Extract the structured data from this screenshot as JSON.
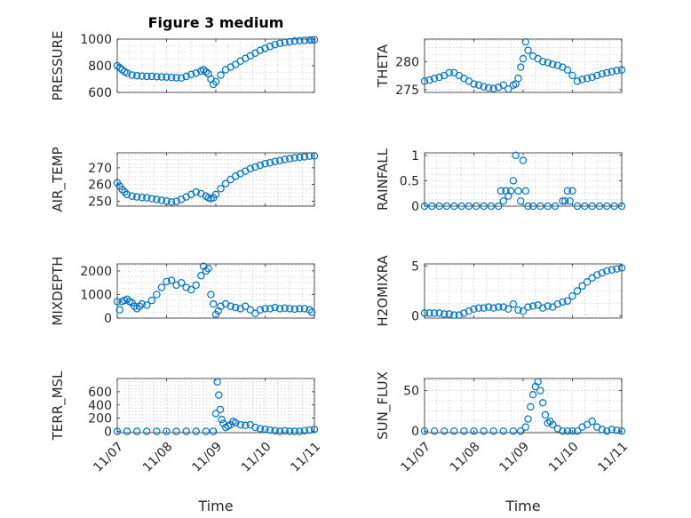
{
  "figure_title": "Figure 3 medium",
  "colors": {
    "marker": "#0072bd",
    "axes": "#262626",
    "grid": "#bdbdbd"
  },
  "chart_data": [
    {
      "type": "scatter",
      "name": "pressure",
      "title": "Figure 3 medium",
      "ylabel": "PRESSURE",
      "xlabel": "",
      "xlim": [
        0,
        4
      ],
      "ylim": [
        600,
        1000
      ],
      "yticks": [
        600,
        800,
        1000
      ],
      "ytick_labels": [
        "600",
        "800",
        "1000"
      ],
      "xticks": [
        0,
        1,
        2,
        3,
        4
      ],
      "xtick_labels": [],
      "grid": true,
      "x": [
        0,
        0.05,
        0.1,
        0.15,
        0.2,
        0.3,
        0.4,
        0.5,
        0.6,
        0.7,
        0.8,
        0.9,
        1.0,
        1.1,
        1.2,
        1.3,
        1.4,
        1.5,
        1.6,
        1.7,
        1.75,
        1.8,
        1.85,
        1.9,
        1.95,
        2.0,
        2.1,
        2.2,
        2.3,
        2.4,
        2.5,
        2.6,
        2.7,
        2.8,
        2.9,
        3.0,
        3.1,
        3.2,
        3.3,
        3.4,
        3.5,
        3.6,
        3.7,
        3.8,
        3.9,
        3.95,
        4.0
      ],
      "y": [
        800,
        785,
        770,
        755,
        745,
        730,
        725,
        722,
        720,
        720,
        718,
        716,
        715,
        712,
        710,
        708,
        720,
        735,
        745,
        760,
        770,
        755,
        740,
        700,
        660,
        680,
        730,
        770,
        790,
        810,
        835,
        855,
        875,
        895,
        915,
        930,
        945,
        958,
        968,
        975,
        980,
        985,
        988,
        990,
        992,
        993,
        995
      ]
    },
    {
      "type": "scatter",
      "name": "theta",
      "title": "",
      "ylabel": "THETA",
      "xlabel": "",
      "xlim": [
        0,
        4
      ],
      "ylim": [
        274.5,
        284
      ],
      "yticks": [
        275,
        280
      ],
      "ytick_labels": [
        "275",
        "280"
      ],
      "xticks": [
        0,
        1,
        2,
        3,
        4
      ],
      "xtick_labels": [],
      "grid": true,
      "x": [
        0,
        0.1,
        0.2,
        0.3,
        0.4,
        0.5,
        0.6,
        0.7,
        0.8,
        0.9,
        1.0,
        1.1,
        1.2,
        1.3,
        1.4,
        1.5,
        1.6,
        1.7,
        1.8,
        1.85,
        1.9,
        1.95,
        2.0,
        2.05,
        2.1,
        2.2,
        2.3,
        2.4,
        2.5,
        2.6,
        2.7,
        2.8,
        2.9,
        3.0,
        3.1,
        3.2,
        3.3,
        3.4,
        3.5,
        3.6,
        3.7,
        3.8,
        3.9,
        4.0
      ],
      "y": [
        276.5,
        276.7,
        277,
        277.2,
        277.5,
        278,
        278,
        277.5,
        277,
        276.5,
        276,
        275.8,
        275.5,
        275.3,
        275.2,
        275.4,
        275.8,
        275.1,
        275.8,
        276,
        277,
        279,
        280.5,
        283.5,
        282,
        281,
        280.5,
        280,
        279.8,
        279.5,
        279.3,
        279,
        278.5,
        277.5,
        276.5,
        276.8,
        277,
        277.2,
        277.5,
        277.8,
        278,
        278.2,
        278.4,
        278.5
      ]
    },
    {
      "type": "scatter",
      "name": "air_temp",
      "title": "",
      "ylabel": "AIR_TEMP",
      "xlabel": "",
      "xlim": [
        0,
        4
      ],
      "ylim": [
        247,
        279
      ],
      "yticks": [
        250,
        260,
        270
      ],
      "ytick_labels": [
        "250",
        "260",
        "270"
      ],
      "xticks": [
        0,
        1,
        2,
        3,
        4
      ],
      "xtick_labels": [],
      "grid": true,
      "x": [
        0,
        0.05,
        0.1,
        0.15,
        0.2,
        0.3,
        0.4,
        0.5,
        0.6,
        0.7,
        0.8,
        0.9,
        1.0,
        1.1,
        1.2,
        1.3,
        1.4,
        1.5,
        1.6,
        1.7,
        1.8,
        1.85,
        1.9,
        1.95,
        2.0,
        2.1,
        2.2,
        2.3,
        2.4,
        2.5,
        2.6,
        2.7,
        2.8,
        2.9,
        3.0,
        3.1,
        3.2,
        3.3,
        3.4,
        3.5,
        3.6,
        3.7,
        3.8,
        3.9,
        4.0
      ],
      "y": [
        261,
        259,
        257,
        255.5,
        254,
        253,
        252.5,
        252.2,
        252,
        251.5,
        251,
        250.5,
        250,
        249.5,
        249.8,
        251,
        252.5,
        254,
        255.5,
        254.5,
        253,
        252,
        251.5,
        252,
        254,
        257.5,
        260.5,
        263,
        265,
        266.5,
        268,
        269.5,
        270.5,
        271.5,
        272.5,
        273,
        273.8,
        274.3,
        275,
        275.5,
        276,
        276.3,
        276.6,
        277,
        277.2
      ]
    },
    {
      "type": "scatter",
      "name": "rainfall",
      "title": "",
      "ylabel": "RAINFALL",
      "xlabel": "",
      "xlim": [
        0,
        4
      ],
      "ylim": [
        0,
        1.05
      ],
      "yticks": [
        0,
        0.5,
        1
      ],
      "ytick_labels": [
        "0",
        "0.5",
        "1"
      ],
      "xticks": [
        0,
        1,
        2,
        3,
        4
      ],
      "xtick_labels": [],
      "grid": true,
      "x": [
        0,
        0.15,
        0.3,
        0.45,
        0.6,
        0.75,
        0.9,
        1.05,
        1.2,
        1.35,
        1.5,
        1.55,
        1.6,
        1.65,
        1.7,
        1.75,
        1.8,
        1.85,
        1.9,
        1.95,
        2.0,
        2.05,
        2.1,
        2.2,
        2.35,
        2.5,
        2.65,
        2.8,
        2.85,
        2.9,
        2.95,
        3.0,
        3.1,
        3.25,
        3.4,
        3.55,
        3.7,
        3.85,
        4.0
      ],
      "y": [
        0,
        0,
        0,
        0,
        0,
        0,
        0,
        0,
        0,
        0,
        0,
        0.3,
        0.1,
        0.3,
        0.2,
        0.3,
        0.5,
        1,
        0.3,
        0.1,
        0.9,
        0.3,
        0,
        0,
        0,
        0,
        0,
        0.1,
        0.1,
        0.3,
        0.1,
        0.3,
        0,
        0,
        0,
        0,
        0,
        0,
        0
      ]
    },
    {
      "type": "scatter",
      "name": "mixdepth",
      "title": "",
      "ylabel": "MIXDEPTH",
      "xlabel": "",
      "xlim": [
        0,
        4
      ],
      "ylim": [
        0,
        2300
      ],
      "yticks": [
        0,
        1000,
        2000
      ],
      "ytick_labels": [
        "0",
        "1000",
        "2000"
      ],
      "xticks": [
        0,
        1,
        2,
        3,
        4
      ],
      "xtick_labels": [],
      "grid": true,
      "x": [
        0,
        0.05,
        0.1,
        0.15,
        0.2,
        0.25,
        0.3,
        0.35,
        0.4,
        0.45,
        0.5,
        0.6,
        0.7,
        0.8,
        0.9,
        1.0,
        1.1,
        1.2,
        1.3,
        1.4,
        1.5,
        1.6,
        1.7,
        1.75,
        1.8,
        1.85,
        1.9,
        1.95,
        2.0,
        2.05,
        2.1,
        2.2,
        2.3,
        2.4,
        2.5,
        2.6,
        2.7,
        2.8,
        2.9,
        3.0,
        3.1,
        3.2,
        3.3,
        3.4,
        3.5,
        3.6,
        3.7,
        3.8,
        3.9,
        3.95
      ],
      "y": [
        700,
        350,
        700,
        750,
        800,
        700,
        650,
        500,
        400,
        500,
        600,
        550,
        750,
        1000,
        1300,
        1550,
        1600,
        1400,
        1500,
        1300,
        1200,
        1400,
        1800,
        2200,
        2000,
        2100,
        1000,
        600,
        150,
        300,
        500,
        600,
        500,
        450,
        400,
        500,
        350,
        200,
        350,
        400,
        400,
        450,
        400,
        420,
        400,
        380,
        400,
        400,
        350,
        250
      ]
    },
    {
      "type": "scatter",
      "name": "h2omixra",
      "title": "",
      "ylabel": "H2OMIXRA",
      "xlabel": "",
      "xlim": [
        0,
        4
      ],
      "ylim": [
        -0.2,
        5.2
      ],
      "yticks": [
        0,
        5
      ],
      "ytick_labels": [
        "0",
        "5"
      ],
      "xticks": [
        0,
        1,
        2,
        3,
        4
      ],
      "xtick_labels": [],
      "grid": true,
      "x": [
        0,
        0.1,
        0.2,
        0.3,
        0.4,
        0.5,
        0.6,
        0.7,
        0.8,
        0.9,
        1.0,
        1.1,
        1.2,
        1.3,
        1.4,
        1.5,
        1.6,
        1.7,
        1.8,
        1.9,
        2.0,
        2.1,
        2.2,
        2.3,
        2.4,
        2.5,
        2.6,
        2.7,
        2.8,
        2.9,
        3.0,
        3.1,
        3.2,
        3.3,
        3.4,
        3.5,
        3.6,
        3.7,
        3.8,
        3.9,
        4.0
      ],
      "y": [
        0.3,
        0.3,
        0.3,
        0.3,
        0.2,
        0.2,
        0.1,
        0.1,
        0.3,
        0.5,
        0.7,
        0.8,
        0.8,
        0.9,
        0.8,
        0.9,
        0.9,
        0.7,
        1.2,
        0.6,
        0.5,
        0.9,
        1.0,
        1.1,
        0.8,
        1.0,
        0.9,
        1.2,
        1.4,
        1.5,
        2.0,
        2.5,
        3.0,
        3.4,
        3.8,
        4.1,
        4.3,
        4.5,
        4.6,
        4.7,
        4.8
      ]
    },
    {
      "type": "scatter",
      "name": "terr_msl",
      "title": "",
      "ylabel": "TERR_MSL",
      "xlabel": "Time",
      "xlim": [
        0,
        4
      ],
      "ylim": [
        -20,
        800
      ],
      "yticks": [
        0,
        200,
        400,
        600
      ],
      "ytick_labels": [
        "0",
        "200",
        "400",
        "600"
      ],
      "xticks": [
        0,
        1,
        2,
        3,
        4
      ],
      "xtick_labels": [
        "11/07",
        "11/08",
        "11/09",
        "11/10",
        "11/11"
      ],
      "grid": true,
      "x": [
        0,
        0.2,
        0.4,
        0.6,
        0.8,
        1.0,
        1.2,
        1.4,
        1.6,
        1.8,
        1.95,
        2.0,
        2.03,
        2.06,
        2.09,
        2.12,
        2.15,
        2.2,
        2.25,
        2.3,
        2.35,
        2.4,
        2.5,
        2.6,
        2.7,
        2.8,
        2.9,
        3.0,
        3.1,
        3.2,
        3.3,
        3.4,
        3.5,
        3.6,
        3.7,
        3.8,
        3.9,
        4.0
      ],
      "y": [
        0,
        0,
        0,
        0,
        0,
        0,
        0,
        0,
        0,
        0,
        0,
        270,
        750,
        550,
        330,
        180,
        120,
        60,
        80,
        100,
        150,
        130,
        100,
        90,
        100,
        60,
        40,
        30,
        20,
        10,
        0,
        10,
        0,
        0,
        0,
        10,
        20,
        30
      ]
    },
    {
      "type": "scatter",
      "name": "sun_flux",
      "title": "",
      "ylabel": "SUN_FLUX",
      "xlabel": "Time",
      "xlim": [
        0,
        4
      ],
      "ylim": [
        -2,
        65
      ],
      "yticks": [
        0,
        50
      ],
      "ytick_labels": [
        "0",
        "50"
      ],
      "xticks": [
        0,
        1,
        2,
        3,
        4
      ],
      "xtick_labels": [
        "11/07",
        "11/08",
        "11/09",
        "11/10",
        "11/11"
      ],
      "grid": true,
      "x": [
        0,
        0.2,
        0.4,
        0.6,
        0.8,
        1.0,
        1.2,
        1.4,
        1.6,
        1.8,
        1.95,
        2.05,
        2.1,
        2.15,
        2.2,
        2.25,
        2.3,
        2.35,
        2.4,
        2.45,
        2.5,
        2.55,
        2.6,
        2.7,
        2.8,
        2.9,
        3.0,
        3.1,
        3.2,
        3.3,
        3.4,
        3.5,
        3.6,
        3.7,
        3.8,
        3.9,
        4.0
      ],
      "y": [
        0,
        0,
        0,
        0,
        0,
        0,
        0,
        0,
        0,
        0,
        0,
        5,
        15,
        30,
        45,
        55,
        61,
        50,
        35,
        20,
        10,
        12,
        8,
        3,
        0,
        0,
        0,
        0,
        5,
        8,
        12,
        5,
        2,
        0,
        2,
        1,
        0
      ]
    }
  ]
}
